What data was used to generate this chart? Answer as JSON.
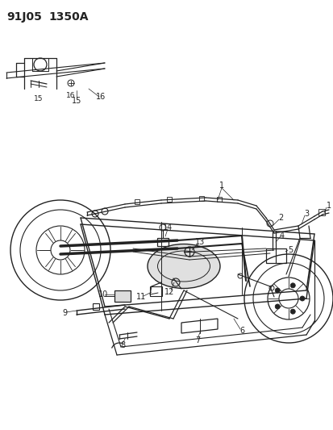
{
  "title_line1": "91J05",
  "title_line2": "1350A",
  "bg": "#ffffff",
  "lc": "#222222",
  "fig_w": 4.14,
  "fig_h": 5.33,
  "dpi": 100
}
